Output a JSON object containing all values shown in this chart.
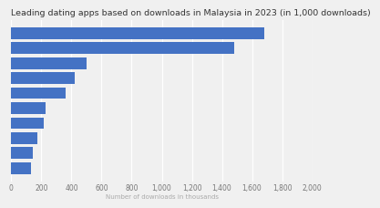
{
  "title": "Leading dating apps based on downloads in Malaysia in 2023 (in 1,000 downloads)",
  "xlabel": "Number of downloads in thousands",
  "categories": [
    "",
    "",
    "",
    "",
    "",
    "",
    "",
    "",
    "",
    ""
  ],
  "values": [
    1680,
    1480,
    500,
    420,
    360,
    230,
    215,
    170,
    140,
    130
  ],
  "bar_color": "#4472c4",
  "xlim": [
    0,
    2000
  ],
  "xticks": [
    0,
    200,
    400,
    600,
    800,
    1000,
    1200,
    1400,
    1600,
    1800,
    2000
  ],
  "xtick_labels": [
    "0",
    "200",
    "400",
    "600",
    "800",
    "1,000",
    "1,200",
    "1,400",
    "1,600",
    "1,800",
    "2,000"
  ],
  "background_color": "#f0f0f0",
  "plot_bg_color": "#f0f0f0",
  "title_fontsize": 6.8,
  "xlabel_fontsize": 5.0,
  "tick_fontsize": 5.5,
  "bar_height": 0.78,
  "grid_color": "#ffffff"
}
